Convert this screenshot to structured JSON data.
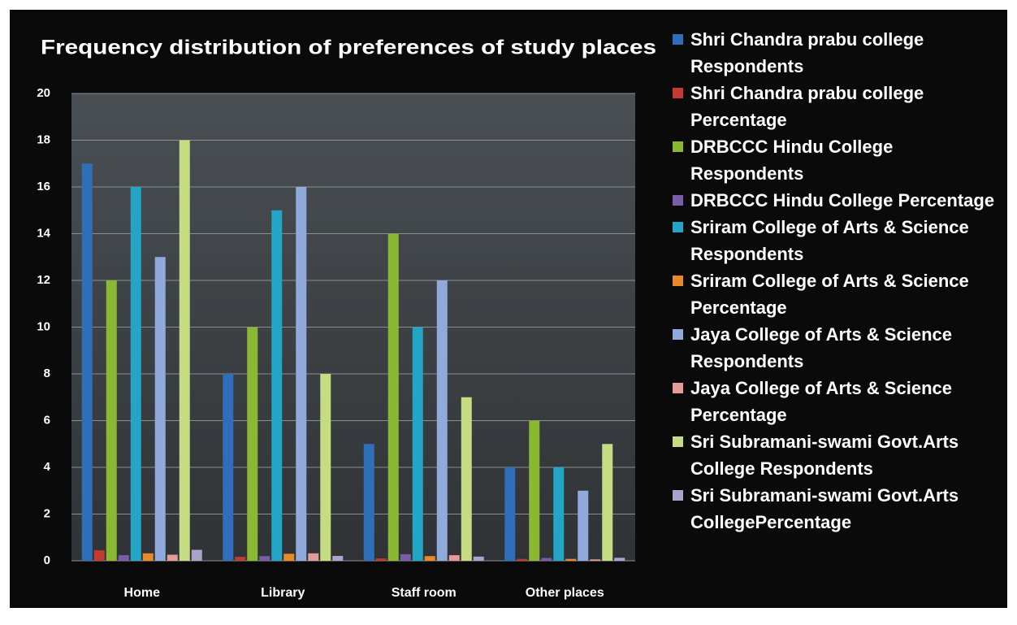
{
  "chart_data": {
    "type": "bar",
    "title": "Frequency distribution of preferences of study places",
    "categories": [
      "Home",
      "Library",
      "Staff room",
      "Other places"
    ],
    "series": [
      {
        "name": "Shri Chandra prabu college Respondents",
        "color": "#2f6fba",
        "values": [
          17,
          8,
          5,
          4
        ]
      },
      {
        "name": "Shri Chandra prabu college Percentage",
        "color": "#c23a33",
        "values": [
          0.45,
          0.17,
          0.1,
          0.08
        ]
      },
      {
        "name": "DRBCCC Hindu College Respondents",
        "color": "#8ab833",
        "values": [
          12,
          10,
          14,
          6
        ]
      },
      {
        "name": "DRBCCC Hindu College Percentage",
        "color": "#7a5ca8",
        "values": [
          0.24,
          0.2,
          0.28,
          0.12
        ]
      },
      {
        "name": "Sriram College of Arts & Science Respondents",
        "color": "#23a5c6",
        "values": [
          16,
          15,
          10,
          4
        ]
      },
      {
        "name": "Sriram College of Arts & Science Percentage",
        "color": "#e98a2a",
        "values": [
          0.32,
          0.3,
          0.2,
          0.08
        ]
      },
      {
        "name": "Jaya College of Arts & Science Respondents",
        "color": "#90aadb",
        "values": [
          13,
          16,
          12,
          3
        ]
      },
      {
        "name": "Jaya College of Arts & Science Percentage",
        "color": "#e59b98",
        "values": [
          0.26,
          0.32,
          0.24,
          0.06
        ]
      },
      {
        "name": "Sri Subramani-swami Govt.Arts College Respondents",
        "color": "#c5dc82",
        "values": [
          18,
          8,
          7,
          5
        ]
      },
      {
        "name": "Sri Subramani-swami Govt.Arts CollegePercentage",
        "color": "#aaa3cb",
        "values": [
          0.47,
          0.21,
          0.18,
          0.13
        ]
      }
    ],
    "ylim": [
      0,
      20
    ],
    "yticks": [
      0,
      2,
      4,
      6,
      8,
      10,
      12,
      14,
      16,
      18,
      20
    ],
    "grid": true,
    "legend": "right"
  }
}
